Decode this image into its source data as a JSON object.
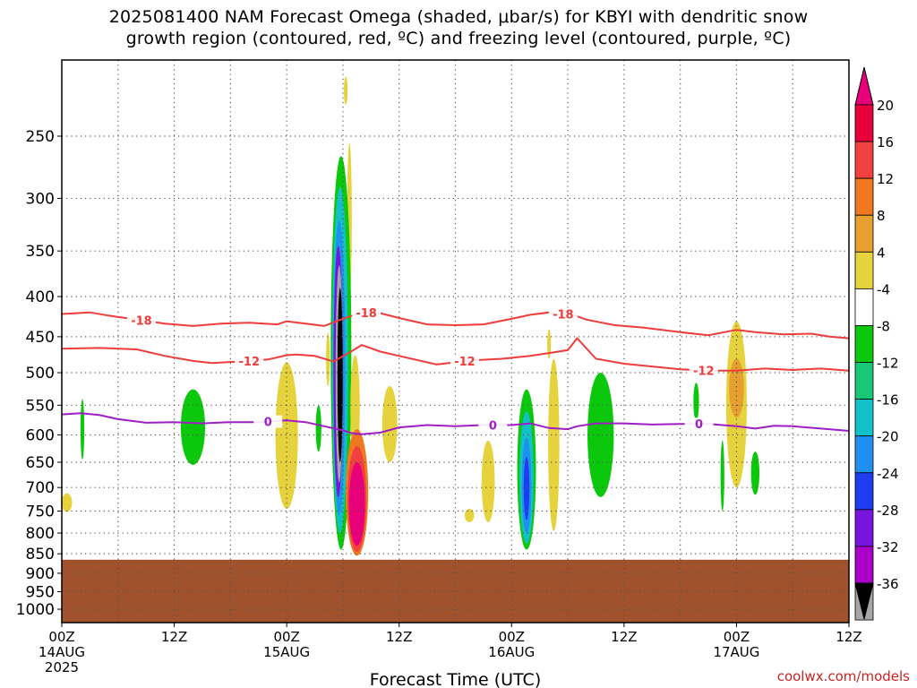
{
  "title_line1": "2025081400 NAM Forecast Omega (shaded, μbar/s) for KBYI with dendritic snow",
  "title_line2": "growth region (contoured, red, ºC) and freezing level (contoured, purple, ºC)",
  "credit": "coolwx.com/models",
  "chart_data": {
    "type": "heatmap",
    "title": "2025081400 NAM Forecast Omega (shaded, μbar/s) for KBYI with dendritic snow growth region (contoured, red, ºC) and freezing level (contoured, purple, ºC)",
    "xlabel": "Forecast Time (UTC)",
    "ylabel": "",
    "xlim": [
      0,
      84
    ],
    "x_unit": "forecast hour",
    "x_ticks": [
      {
        "hour": 0,
        "label": "00Z",
        "sub": "14AUG",
        "sub2": "2025"
      },
      {
        "hour": 12,
        "label": "12Z",
        "sub": "",
        "sub2": ""
      },
      {
        "hour": 24,
        "label": "00Z",
        "sub": "15AUG",
        "sub2": ""
      },
      {
        "hour": 36,
        "label": "12Z",
        "sub": "",
        "sub2": ""
      },
      {
        "hour": 48,
        "label": "00Z",
        "sub": "16AUG",
        "sub2": ""
      },
      {
        "hour": 60,
        "label": "12Z",
        "sub": "",
        "sub2": ""
      },
      {
        "hour": 72,
        "label": "00Z",
        "sub": "17AUG",
        "sub2": ""
      },
      {
        "hour": 84,
        "label": "12Z",
        "sub": "",
        "sub2": ""
      }
    ],
    "y_scale": "log",
    "ylim": [
      1040,
      200
    ],
    "y_ticks": [
      250,
      300,
      350,
      400,
      450,
      500,
      550,
      600,
      650,
      700,
      750,
      800,
      850,
      900,
      950,
      1000
    ],
    "grid": true,
    "ground_pressure": 865,
    "ground_color": "#a0522d",
    "colorbar": {
      "labels": [
        "20",
        "16",
        "12",
        "8",
        "4",
        "-4",
        "-8",
        "-12",
        "-16",
        "-20",
        "-24",
        "-28",
        "-32",
        "-36"
      ],
      "colors": [
        "#e8003c",
        "#f04040",
        "#f07820",
        "#e6a030",
        "#e6d23c",
        "#ffffff",
        "#0cc80c",
        "#18c878",
        "#14c0c8",
        "#1e90f0",
        "#1e3cf0",
        "#7814dc",
        "#aa00c8",
        "#a6a6a6",
        "#000000"
      ],
      "top_color": "#e8007a"
    },
    "contours": [
      {
        "name": "-18",
        "color": "#ee3c3c",
        "label_hours": [
          8.5,
          32.5,
          53.5
        ],
        "points": [
          [
            0,
            421
          ],
          [
            3,
            419
          ],
          [
            5,
            423
          ],
          [
            8,
            428
          ],
          [
            11,
            433
          ],
          [
            14,
            436
          ],
          [
            17,
            433
          ],
          [
            20,
            432
          ],
          [
            23,
            434
          ],
          [
            24,
            430
          ],
          [
            26,
            433
          ],
          [
            28,
            436
          ],
          [
            30,
            427
          ],
          [
            32,
            419
          ],
          [
            34,
            420
          ],
          [
            36,
            426
          ],
          [
            39,
            434
          ],
          [
            42,
            435
          ],
          [
            45,
            434
          ],
          [
            48,
            427
          ],
          [
            50,
            422
          ],
          [
            52,
            419
          ],
          [
            53,
            422
          ],
          [
            54,
            420
          ],
          [
            56,
            428
          ],
          [
            59,
            435
          ],
          [
            62,
            438
          ],
          [
            66,
            444
          ],
          [
            69,
            448
          ],
          [
            72,
            441
          ],
          [
            74,
            444
          ],
          [
            77,
            447
          ],
          [
            80,
            446
          ],
          [
            82,
            450
          ],
          [
            84,
            452
          ]
        ]
      },
      {
        "name": "-12",
        "color": "#ee3c3c",
        "label_hours": [
          20,
          43,
          68.5
        ],
        "points": [
          [
            0,
            466
          ],
          [
            4,
            465
          ],
          [
            8,
            467
          ],
          [
            11,
            476
          ],
          [
            14,
            483
          ],
          [
            16,
            486
          ],
          [
            19,
            484
          ],
          [
            22,
            481
          ],
          [
            24,
            475
          ],
          [
            25,
            474
          ],
          [
            27,
            476
          ],
          [
            29,
            484
          ],
          [
            31,
            469
          ],
          [
            32,
            461
          ],
          [
            34,
            470
          ],
          [
            36,
            476
          ],
          [
            40,
            488
          ],
          [
            44,
            482
          ],
          [
            47,
            480
          ],
          [
            50,
            476
          ],
          [
            52,
            472
          ],
          [
            54,
            468
          ],
          [
            55,
            452
          ],
          [
            57,
            480
          ],
          [
            60,
            487
          ],
          [
            63,
            491
          ],
          [
            66,
            495
          ],
          [
            69,
            497
          ],
          [
            72,
            497
          ],
          [
            75,
            494
          ],
          [
            78,
            496
          ],
          [
            81,
            494
          ],
          [
            84,
            497
          ]
        ]
      },
      {
        "name": "0",
        "color": "#9e1ec4",
        "label_hours": [
          22,
          46,
          68
        ],
        "points": [
          [
            0,
            565
          ],
          [
            2,
            563
          ],
          [
            4,
            566
          ],
          [
            6,
            573
          ],
          [
            9,
            579
          ],
          [
            12,
            578
          ],
          [
            15,
            580
          ],
          [
            18,
            578
          ],
          [
            21,
            578
          ],
          [
            24,
            575
          ],
          [
            26,
            578
          ],
          [
            28,
            585
          ],
          [
            30,
            592
          ],
          [
            31,
            597
          ],
          [
            32,
            599
          ],
          [
            34,
            596
          ],
          [
            36,
            587
          ],
          [
            39,
            583
          ],
          [
            42,
            585
          ],
          [
            45,
            583
          ],
          [
            48,
            583
          ],
          [
            50,
            580
          ],
          [
            52,
            588
          ],
          [
            54,
            590
          ],
          [
            55,
            585
          ],
          [
            57,
            580
          ],
          [
            60,
            580
          ],
          [
            63,
            582
          ],
          [
            66,
            581
          ],
          [
            69,
            581
          ],
          [
            72,
            585
          ],
          [
            74,
            589
          ],
          [
            76,
            584
          ],
          [
            78,
            585
          ],
          [
            81,
            589
          ],
          [
            84,
            593
          ]
        ]
      }
    ],
    "omega_blobs": [
      {
        "color": "#e6d23c",
        "hour": 0.55,
        "p_top": 712,
        "p_bot": 752,
        "hw": 0.55
      },
      {
        "color": "#0cc80c",
        "hour": 2.2,
        "p_top": 540,
        "p_bot": 645,
        "hw": 0.2
      },
      {
        "color": "#0cc80c",
        "hour": 14.0,
        "p_top": 525,
        "p_bot": 655,
        "hw": 1.3
      },
      {
        "color": "#e6d23c",
        "hour": 24.0,
        "p_top": 485,
        "p_bot": 745,
        "hw": 1.2
      },
      {
        "color": "#0cc80c",
        "hour": 27.4,
        "p_top": 550,
        "p_bot": 630,
        "hw": 0.3
      },
      {
        "color": "#e6d23c",
        "hour": 30.3,
        "p_top": 210,
        "p_bot": 228,
        "hw": 0.2
      },
      {
        "color": "#e6d23c",
        "hour": 30.7,
        "p_top": 255,
        "p_bot": 400,
        "hw": 0.25
      },
      {
        "color": "#0cc80c",
        "hour": 29.8,
        "p_top": 265,
        "p_bot": 840,
        "hw": 1.1
      },
      {
        "color": "#14c0c8",
        "hour": 29.7,
        "p_top": 290,
        "p_bot": 800,
        "hw": 0.85
      },
      {
        "color": "#1e90f0",
        "hour": 29.6,
        "p_top": 320,
        "p_bot": 760,
        "hw": 0.65
      },
      {
        "color": "#7814dc",
        "hour": 29.5,
        "p_top": 345,
        "p_bot": 720,
        "hw": 0.5
      },
      {
        "color": "#a6a6a6",
        "hour": 29.6,
        "p_top": 365,
        "p_bot": 690,
        "hw": 0.38
      },
      {
        "color": "#000000",
        "hour": 29.7,
        "p_top": 390,
        "p_bot": 650,
        "hw": 0.28
      },
      {
        "color": "#e6d23c",
        "hour": 31.3,
        "p_top": 475,
        "p_bot": 645,
        "hw": 0.5
      },
      {
        "color": "#e6d23c",
        "hour": 35.0,
        "p_top": 520,
        "p_bot": 650,
        "hw": 0.8
      },
      {
        "color": "#e6d23c",
        "hour": 28.4,
        "p_top": 445,
        "p_bot": 520,
        "hw": 0.2
      },
      {
        "color": "#f07820",
        "hour": 31.5,
        "p_top": 590,
        "p_bot": 855,
        "hw": 1.2
      },
      {
        "color": "#f04040",
        "hour": 31.5,
        "p_top": 620,
        "p_bot": 845,
        "hw": 1.0
      },
      {
        "color": "#e8007a",
        "hour": 31.5,
        "p_top": 650,
        "p_bot": 830,
        "hw": 0.85
      },
      {
        "color": "#e6d23c",
        "hour": 45.5,
        "p_top": 610,
        "p_bot": 775,
        "hw": 0.7
      },
      {
        "color": "#e6d23c",
        "hour": 43.5,
        "p_top": 745,
        "p_bot": 775,
        "hw": 0.5
      },
      {
        "color": "#0cc80c",
        "hour": 49.6,
        "p_top": 525,
        "p_bot": 840,
        "hw": 1.0
      },
      {
        "color": "#14c0c8",
        "hour": 49.6,
        "p_top": 560,
        "p_bot": 825,
        "hw": 0.75
      },
      {
        "color": "#1e90f0",
        "hour": 49.6,
        "p_top": 605,
        "p_bot": 800,
        "hw": 0.5
      },
      {
        "color": "#1e3cf0",
        "hour": 49.6,
        "p_top": 640,
        "p_bot": 770,
        "hw": 0.3
      },
      {
        "color": "#e6d23c",
        "hour": 52.5,
        "p_top": 480,
        "p_bot": 795,
        "hw": 0.6
      },
      {
        "color": "#e6d23c",
        "hour": 52.0,
        "p_top": 440,
        "p_bot": 480,
        "hw": 0.2
      },
      {
        "color": "#0cc80c",
        "hour": 57.5,
        "p_top": 500,
        "p_bot": 720,
        "hw": 1.4
      },
      {
        "color": "#0cc80c",
        "hour": 67.7,
        "p_top": 515,
        "p_bot": 575,
        "hw": 0.3
      },
      {
        "color": "#0cc80c",
        "hour": 70.5,
        "p_top": 610,
        "p_bot": 750,
        "hw": 0.2
      },
      {
        "color": "#0cc80c",
        "hour": 74.0,
        "p_top": 630,
        "p_bot": 715,
        "hw": 0.45
      },
      {
        "color": "#e6d23c",
        "hour": 72.0,
        "p_top": 430,
        "p_bot": 700,
        "hw": 1.1
      },
      {
        "color": "#e6a030",
        "hour": 72.0,
        "p_top": 480,
        "p_bot": 570,
        "hw": 0.8
      }
    ]
  }
}
